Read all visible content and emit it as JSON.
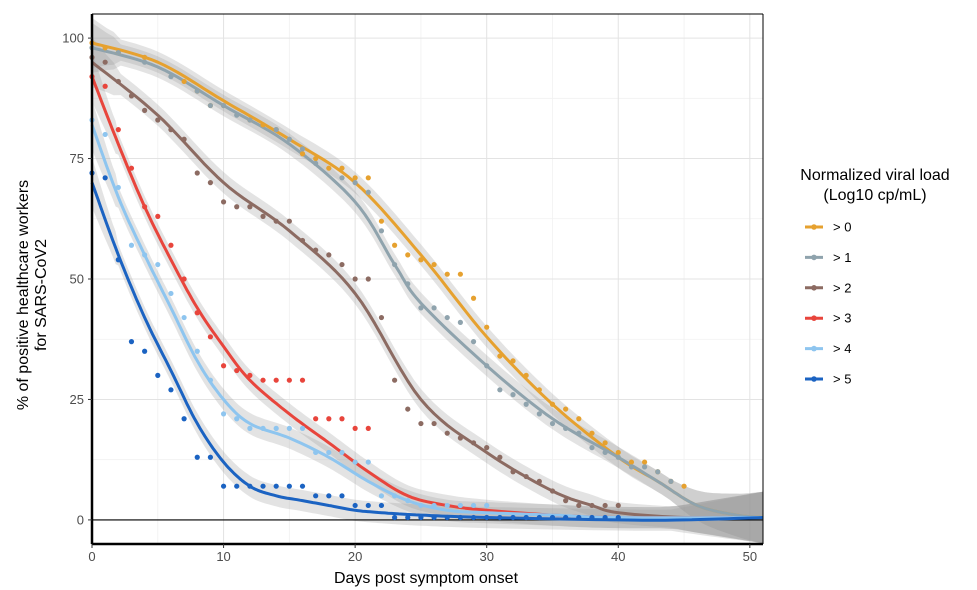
{
  "chart_data": {
    "type": "scatter",
    "xlabel": "Days post symptom onset",
    "ylabel_line1": "% of positive healthcare  workers",
    "ylabel_line2": "for SARS-CoV2",
    "xlim": [
      0,
      51
    ],
    "ylim": [
      -5,
      105
    ],
    "x_ticks": [
      0,
      10,
      20,
      30,
      40,
      50
    ],
    "y_ticks": [
      0,
      25,
      50,
      75,
      100
    ],
    "grid": true,
    "reference_line_y": 0,
    "smoothing": "loess with confidence band",
    "legend": {
      "title_line1": "Normalized viral load",
      "title_line2": "(Log10 cp/mL)",
      "position": "right"
    },
    "series": [
      {
        "name": "> 0",
        "color": "#e6a12f",
        "points": [
          [
            0,
            99
          ],
          [
            1,
            98
          ],
          [
            2,
            97
          ],
          [
            4,
            96
          ],
          [
            7,
            91
          ],
          [
            8,
            89
          ],
          [
            9,
            86
          ],
          [
            10,
            86
          ],
          [
            12,
            83
          ],
          [
            13,
            82
          ],
          [
            14,
            81
          ],
          [
            16,
            76
          ],
          [
            17,
            75
          ],
          [
            18,
            73
          ],
          [
            19,
            73
          ],
          [
            20,
            71
          ],
          [
            21,
            71
          ],
          [
            22,
            62
          ],
          [
            23,
            57
          ],
          [
            24,
            55
          ],
          [
            25,
            54
          ],
          [
            26,
            53
          ],
          [
            27,
            51
          ],
          [
            28,
            51
          ],
          [
            29,
            46
          ],
          [
            30,
            40
          ],
          [
            31,
            34
          ],
          [
            32,
            33
          ],
          [
            33,
            30
          ],
          [
            34,
            27
          ],
          [
            35,
            24
          ],
          [
            36,
            23
          ],
          [
            37,
            21
          ],
          [
            38,
            18
          ],
          [
            39,
            16
          ],
          [
            40,
            14
          ],
          [
            41,
            12
          ],
          [
            42,
            12
          ],
          [
            43,
            10
          ],
          [
            44,
            8
          ],
          [
            45,
            7
          ]
        ],
        "curve": [
          [
            0,
            99
          ],
          [
            5,
            95
          ],
          [
            10,
            87
          ],
          [
            15,
            79
          ],
          [
            20,
            70
          ],
          [
            25,
            55
          ],
          [
            30,
            38
          ],
          [
            35,
            24
          ],
          [
            40,
            13
          ],
          [
            43,
            8
          ],
          [
            46,
            3
          ],
          [
            49,
            1
          ],
          [
            51,
            0.5
          ]
        ]
      },
      {
        "name": "> 1",
        "color": "#8fa3ad",
        "points": [
          [
            0,
            98
          ],
          [
            2,
            97
          ],
          [
            4,
            95
          ],
          [
            6,
            92
          ],
          [
            8,
            89
          ],
          [
            9,
            86
          ],
          [
            10,
            86
          ],
          [
            11,
            84
          ],
          [
            12,
            83
          ],
          [
            14,
            81
          ],
          [
            15,
            79
          ],
          [
            16,
            77
          ],
          [
            17,
            74
          ],
          [
            19,
            71
          ],
          [
            20,
            70
          ],
          [
            21,
            68
          ],
          [
            22,
            60
          ],
          [
            23,
            53
          ],
          [
            24,
            49
          ],
          [
            25,
            44
          ],
          [
            26,
            44
          ],
          [
            27,
            42
          ],
          [
            28,
            41
          ],
          [
            29,
            37
          ],
          [
            30,
            32
          ],
          [
            31,
            27
          ],
          [
            32,
            26
          ],
          [
            33,
            24
          ],
          [
            34,
            22
          ],
          [
            35,
            20
          ],
          [
            36,
            19
          ],
          [
            37,
            18
          ],
          [
            38,
            15
          ],
          [
            39,
            14
          ],
          [
            40,
            13
          ],
          [
            41,
            11
          ],
          [
            42,
            11
          ],
          [
            43,
            10
          ],
          [
            44,
            8
          ]
        ],
        "curve": [
          [
            0,
            98
          ],
          [
            5,
            94
          ],
          [
            10,
            86
          ],
          [
            15,
            78
          ],
          [
            20,
            66
          ],
          [
            23,
            53
          ],
          [
            25,
            45
          ],
          [
            30,
            32
          ],
          [
            35,
            21
          ],
          [
            40,
            13
          ],
          [
            43,
            8
          ],
          [
            46,
            3
          ],
          [
            49,
            1
          ],
          [
            51,
            0.5
          ]
        ]
      },
      {
        "name": "> 2",
        "color": "#8c6b62",
        "points": [
          [
            0,
            96
          ],
          [
            1,
            95
          ],
          [
            2,
            91
          ],
          [
            3,
            88
          ],
          [
            4,
            85
          ],
          [
            5,
            83
          ],
          [
            6,
            81
          ],
          [
            7,
            79
          ],
          [
            8,
            72
          ],
          [
            9,
            70
          ],
          [
            10,
            66
          ],
          [
            11,
            65
          ],
          [
            12,
            65
          ],
          [
            13,
            63
          ],
          [
            14,
            62
          ],
          [
            15,
            62
          ],
          [
            16,
            58
          ],
          [
            17,
            56
          ],
          [
            18,
            55
          ],
          [
            19,
            53
          ],
          [
            20,
            50
          ],
          [
            21,
            50
          ],
          [
            22,
            42
          ],
          [
            23,
            29
          ],
          [
            24,
            23
          ],
          [
            25,
            20
          ],
          [
            26,
            20
          ],
          [
            27,
            18
          ],
          [
            28,
            17
          ],
          [
            29,
            16
          ],
          [
            30,
            15
          ],
          [
            31,
            13
          ],
          [
            32,
            10
          ],
          [
            33,
            9
          ],
          [
            34,
            8
          ],
          [
            35,
            6
          ],
          [
            36,
            4
          ],
          [
            37,
            3
          ],
          [
            38,
            3
          ],
          [
            39,
            3
          ],
          [
            40,
            3
          ]
        ],
        "curve": [
          [
            0,
            95
          ],
          [
            5,
            84
          ],
          [
            10,
            70
          ],
          [
            15,
            60
          ],
          [
            20,
            47
          ],
          [
            25,
            25
          ],
          [
            30,
            14
          ],
          [
            35,
            6
          ],
          [
            38,
            3
          ],
          [
            40,
            1.5
          ],
          [
            45,
            0.5
          ],
          [
            51,
            0.5
          ]
        ]
      },
      {
        "name": "> 3",
        "color": "#e8453c",
        "points": [
          [
            0,
            92
          ],
          [
            1,
            90
          ],
          [
            2,
            81
          ],
          [
            3,
            73
          ],
          [
            4,
            65
          ],
          [
            5,
            63
          ],
          [
            6,
            57
          ],
          [
            7,
            50
          ],
          [
            8,
            43
          ],
          [
            9,
            38
          ],
          [
            10,
            32
          ],
          [
            11,
            31
          ],
          [
            12,
            30
          ],
          [
            13,
            29
          ],
          [
            14,
            29
          ],
          [
            15,
            29
          ],
          [
            16,
            29
          ],
          [
            17,
            21
          ],
          [
            18,
            21
          ],
          [
            19,
            21
          ],
          [
            20,
            19
          ],
          [
            21,
            19
          ]
        ],
        "curve": [
          [
            0,
            92
          ],
          [
            2,
            78
          ],
          [
            4,
            65
          ],
          [
            6,
            54
          ],
          [
            8,
            44
          ],
          [
            10,
            36
          ],
          [
            12,
            29
          ],
          [
            15,
            22
          ],
          [
            18,
            16
          ],
          [
            21,
            10
          ],
          [
            24,
            5
          ],
          [
            27,
            3
          ],
          [
            30,
            2
          ],
          [
            35,
            1
          ],
          [
            40,
            0.5
          ],
          [
            51,
            0.5
          ]
        ]
      },
      {
        "name": "> 4",
        "color": "#8ec5ef",
        "points": [
          [
            0,
            83
          ],
          [
            1,
            80
          ],
          [
            2,
            69
          ],
          [
            3,
            57
          ],
          [
            4,
            55
          ],
          [
            5,
            53
          ],
          [
            6,
            47
          ],
          [
            7,
            42
          ],
          [
            8,
            35
          ],
          [
            9,
            29
          ],
          [
            10,
            22
          ],
          [
            11,
            21
          ],
          [
            12,
            19
          ],
          [
            13,
            19
          ],
          [
            14,
            19
          ],
          [
            15,
            19
          ],
          [
            16,
            19
          ],
          [
            17,
            14
          ],
          [
            18,
            14
          ],
          [
            19,
            14
          ],
          [
            20,
            12
          ],
          [
            21,
            12
          ],
          [
            22,
            5
          ],
          [
            23,
            5
          ],
          [
            24,
            4
          ],
          [
            25,
            3
          ],
          [
            26,
            3
          ],
          [
            27,
            3
          ],
          [
            28,
            3
          ],
          [
            29,
            3
          ],
          [
            30,
            3
          ]
        ],
        "curve": [
          [
            0,
            82
          ],
          [
            2,
            67
          ],
          [
            4,
            55
          ],
          [
            6,
            44
          ],
          [
            8,
            33
          ],
          [
            10,
            25
          ],
          [
            12,
            20
          ],
          [
            15,
            17
          ],
          [
            18,
            13
          ],
          [
            21,
            8
          ],
          [
            24,
            4
          ],
          [
            27,
            2
          ],
          [
            30,
            1.5
          ],
          [
            35,
            1
          ],
          [
            40,
            0.5
          ],
          [
            51,
            0.5
          ]
        ]
      },
      {
        "name": "> 5",
        "color": "#1b63c2",
        "points": [
          [
            0,
            72
          ],
          [
            1,
            71
          ],
          [
            2,
            54
          ],
          [
            3,
            37
          ],
          [
            4,
            35
          ],
          [
            5,
            30
          ],
          [
            6,
            27
          ],
          [
            7,
            21
          ],
          [
            8,
            13
          ],
          [
            9,
            13
          ],
          [
            10,
            7
          ],
          [
            11,
            7
          ],
          [
            12,
            7
          ],
          [
            13,
            7
          ],
          [
            14,
            7
          ],
          [
            15,
            7
          ],
          [
            16,
            7
          ],
          [
            17,
            5
          ],
          [
            18,
            5
          ],
          [
            19,
            5
          ],
          [
            20,
            3
          ],
          [
            21,
            3
          ],
          [
            22,
            3
          ],
          [
            23,
            0.5
          ],
          [
            24,
            0.5
          ],
          [
            25,
            0.5
          ],
          [
            26,
            0.5
          ],
          [
            27,
            0.5
          ],
          [
            28,
            0.5
          ],
          [
            29,
            0.5
          ],
          [
            30,
            0.5
          ],
          [
            31,
            0.5
          ],
          [
            32,
            0.5
          ],
          [
            33,
            0.5
          ],
          [
            34,
            0.5
          ],
          [
            35,
            0.5
          ],
          [
            36,
            0.5
          ],
          [
            37,
            0.5
          ],
          [
            38,
            0.5
          ],
          [
            39,
            0.5
          ],
          [
            40,
            0.5
          ]
        ],
        "curve": [
          [
            0,
            70
          ],
          [
            2,
            55
          ],
          [
            4,
            42
          ],
          [
            6,
            31
          ],
          [
            8,
            20
          ],
          [
            10,
            12
          ],
          [
            12,
            7
          ],
          [
            14,
            5
          ],
          [
            16,
            4
          ],
          [
            18,
            3
          ],
          [
            20,
            2
          ],
          [
            22,
            1.5
          ],
          [
            25,
            1
          ],
          [
            30,
            0.5
          ],
          [
            40,
            0
          ],
          [
            45,
            0
          ],
          [
            51,
            0.5
          ]
        ]
      }
    ]
  }
}
